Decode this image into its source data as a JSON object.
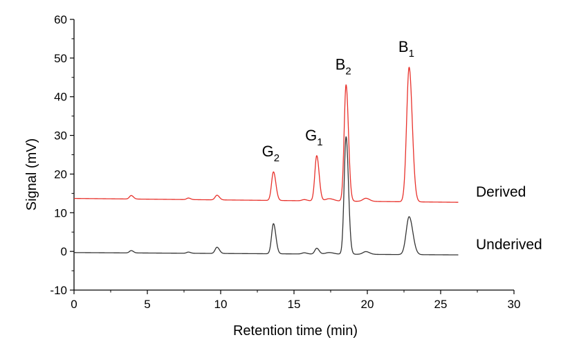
{
  "chart_data": {
    "type": "line",
    "xlabel": "Retention time (min)",
    "ylabel": "Signal (mV)",
    "xlim": [
      0,
      30
    ],
    "ylim": [
      -10,
      60
    ],
    "x_ticks": [
      0,
      5,
      10,
      15,
      20,
      25,
      30
    ],
    "y_ticks": [
      -10,
      0,
      10,
      20,
      30,
      40,
      50,
      60
    ],
    "x_tick_labels": [
      "0",
      "5",
      "10",
      "15",
      "20",
      "25",
      "30"
    ],
    "y_tick_labels": [
      "-10",
      "0",
      "10",
      "20",
      "30",
      "40",
      "50",
      "60"
    ],
    "grid": false,
    "x_range": [
      0,
      26.2
    ],
    "series": [
      {
        "name": "Derived",
        "color": "#e8302a",
        "baseline_start": 13.7,
        "baseline_end": 12.7,
        "peaks": [
          {
            "x": 3.9,
            "height": 0.9,
            "width": 0.12
          },
          {
            "x": 7.8,
            "height": 0.4,
            "width": 0.12
          },
          {
            "x": 9.75,
            "height": 1.2,
            "width": 0.13
          },
          {
            "x": 13.6,
            "height": 7.4,
            "width": 0.13
          },
          {
            "x": 15.7,
            "height": 0.3,
            "width": 0.15
          },
          {
            "x": 16.55,
            "height": 11.7,
            "width": 0.13
          },
          {
            "x": 17.4,
            "height": 0.6,
            "width": 0.25
          },
          {
            "x": 18.55,
            "height": 30.1,
            "width": 0.13
          },
          {
            "x": 19.9,
            "height": 0.8,
            "width": 0.2
          },
          {
            "x": 22.85,
            "height": 34.8,
            "width": 0.17
          }
        ]
      },
      {
        "name": "Underived",
        "color": "#333333",
        "baseline_start": -0.3,
        "baseline_end": -0.9,
        "peaks": [
          {
            "x": 3.9,
            "height": 0.6,
            "width": 0.12
          },
          {
            "x": 7.8,
            "height": 0.3,
            "width": 0.12
          },
          {
            "x": 9.75,
            "height": 1.6,
            "width": 0.13
          },
          {
            "x": 13.6,
            "height": 7.8,
            "width": 0.13
          },
          {
            "x": 15.7,
            "height": 0.3,
            "width": 0.15
          },
          {
            "x": 16.55,
            "height": 1.5,
            "width": 0.13
          },
          {
            "x": 17.4,
            "height": 0.4,
            "width": 0.25
          },
          {
            "x": 18.55,
            "height": 30.4,
            "width": 0.13
          },
          {
            "x": 19.9,
            "height": 0.7,
            "width": 0.2
          },
          {
            "x": 22.85,
            "height": 9.8,
            "width": 0.2
          }
        ]
      }
    ],
    "peak_labels": [
      {
        "base": "G",
        "sub": "2",
        "x": 13.6
      },
      {
        "base": "G",
        "sub": "1",
        "x": 16.55
      },
      {
        "base": "B",
        "sub": "2",
        "x": 18.55
      },
      {
        "base": "B",
        "sub": "1",
        "x": 22.85
      }
    ],
    "series_labels": [
      {
        "text": "Derived"
      },
      {
        "text": "Underived"
      }
    ]
  }
}
